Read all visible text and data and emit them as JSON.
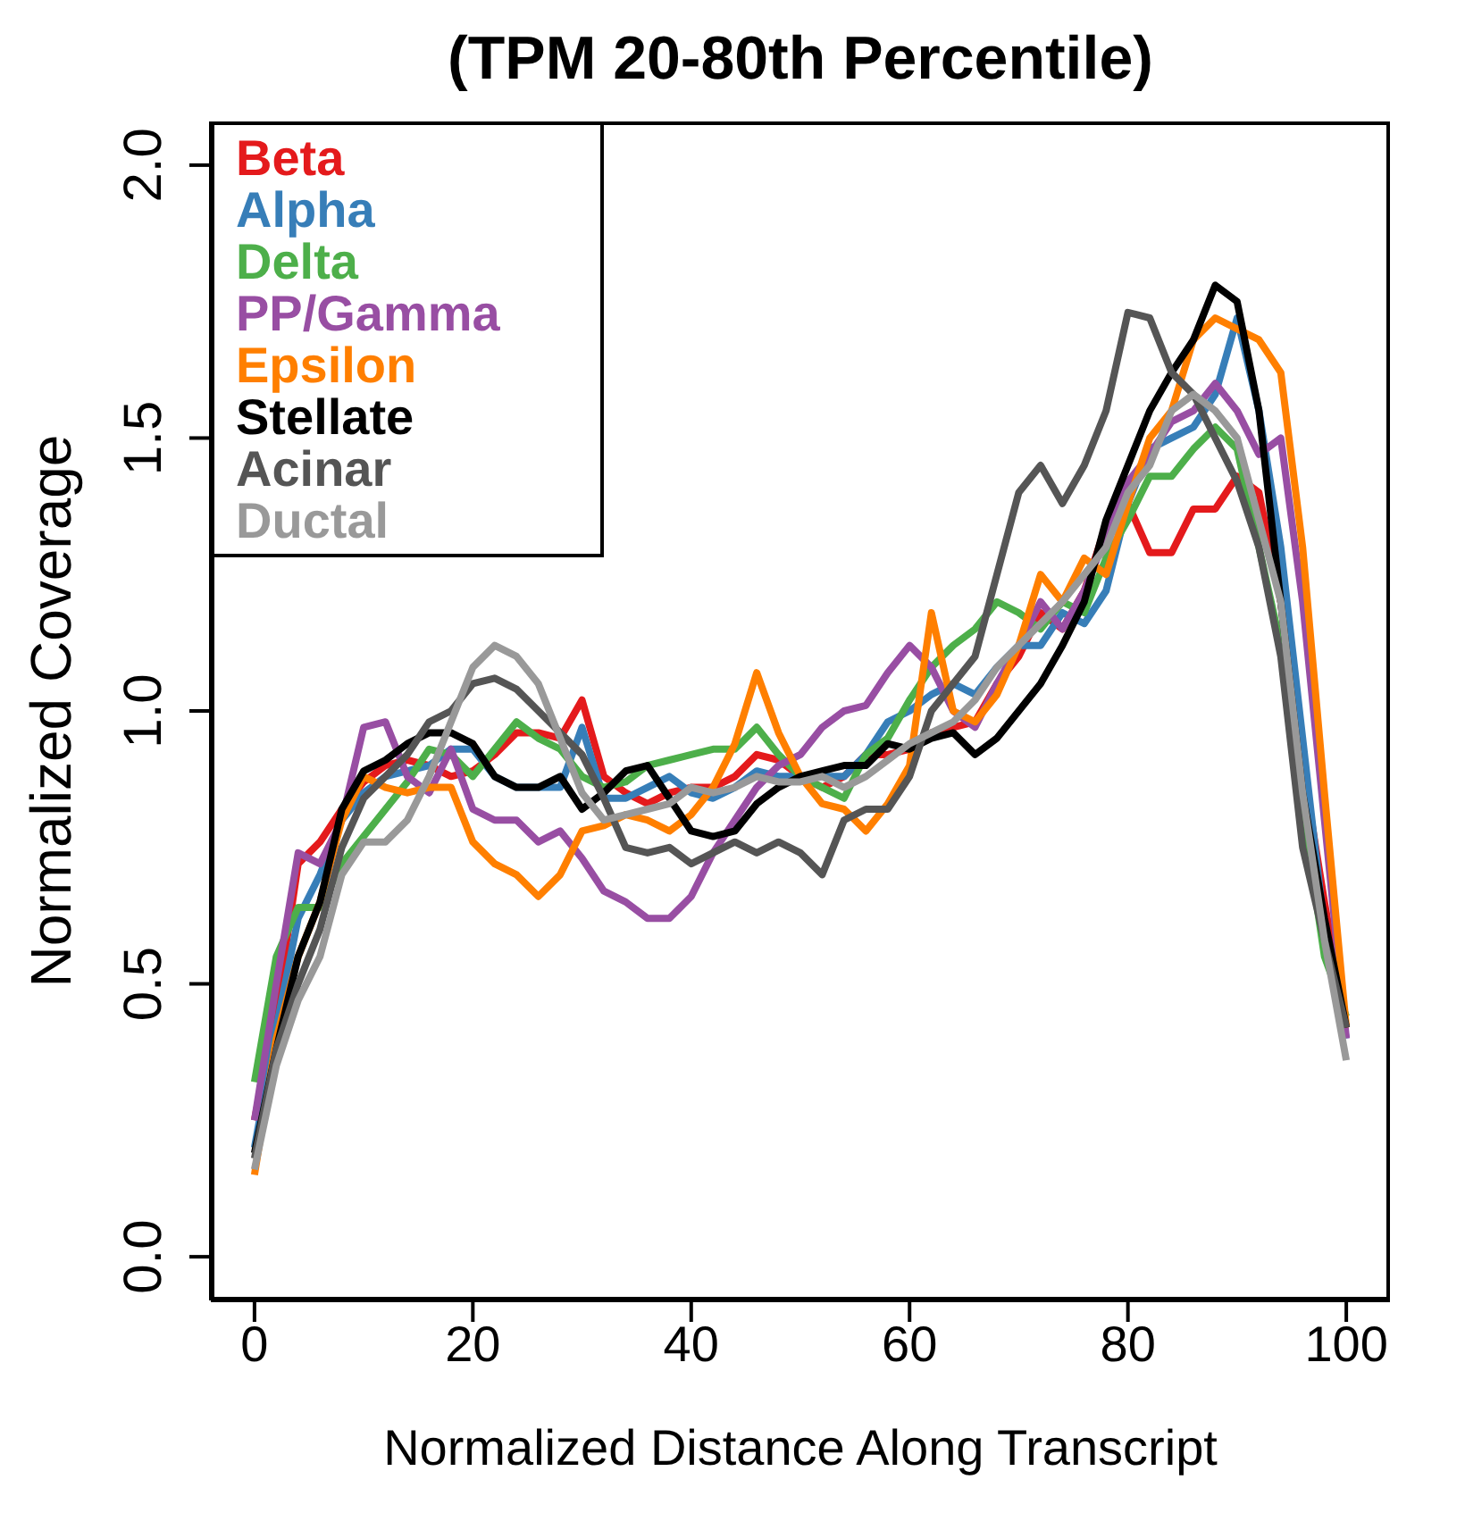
{
  "chart_data": {
    "type": "line",
    "title": "(TPM 20-80th Percentile)",
    "xlabel": "Normalized Distance Along Transcript",
    "ylabel": "Normalized Coverage",
    "x": [
      0,
      2,
      4,
      6,
      8,
      10,
      12,
      14,
      16,
      18,
      20,
      22,
      24,
      26,
      28,
      30,
      32,
      34,
      36,
      38,
      40,
      42,
      44,
      46,
      48,
      50,
      52,
      54,
      56,
      58,
      60,
      62,
      64,
      66,
      68,
      70,
      72,
      74,
      76,
      78,
      80,
      82,
      84,
      86,
      88,
      90,
      92,
      94,
      96,
      98,
      100
    ],
    "xlim": [
      -4,
      104
    ],
    "ylim": [
      -0.08,
      2.08
    ],
    "xticks": [
      0,
      20,
      40,
      60,
      80,
      100
    ],
    "yticks": [
      {
        "value": 0,
        "label": "0.0"
      },
      0.5,
      {
        "value": 1,
        "label": "1.0"
      },
      1.5,
      {
        "value": 2,
        "label": "2.0"
      }
    ],
    "grid": false,
    "legend": "top left",
    "marker": "none",
    "line_style": "solid",
    "series": [
      {
        "name": "Beta",
        "color": "#e41a1c",
        "values": [
          0.25,
          0.45,
          0.72,
          0.76,
          0.82,
          0.87,
          0.9,
          0.91,
          0.9,
          0.88,
          0.89,
          0.92,
          0.96,
          0.96,
          0.95,
          1.02,
          0.88,
          0.85,
          0.83,
          0.85,
          0.86,
          0.86,
          0.88,
          0.92,
          0.91,
          0.88,
          0.86,
          0.88,
          0.92,
          0.92,
          0.93,
          0.96,
          0.97,
          0.98,
          1.05,
          1.1,
          1.18,
          1.15,
          1.22,
          1.34,
          1.38,
          1.29,
          1.29,
          1.37,
          1.37,
          1.43,
          1.4,
          1.2,
          0.9,
          0.65,
          0.42
        ]
      },
      {
        "name": "Alpha",
        "color": "#377eb8",
        "values": [
          0.2,
          0.42,
          0.62,
          0.7,
          0.8,
          0.85,
          0.88,
          0.89,
          0.9,
          0.93,
          0.93,
          0.88,
          0.86,
          0.86,
          0.86,
          0.97,
          0.84,
          0.84,
          0.86,
          0.88,
          0.85,
          0.84,
          0.86,
          0.89,
          0.88,
          0.88,
          0.88,
          0.88,
          0.92,
          0.98,
          1.0,
          1.03,
          1.05,
          1.03,
          1.08,
          1.12,
          1.12,
          1.18,
          1.16,
          1.22,
          1.38,
          1.48,
          1.5,
          1.52,
          1.58,
          1.72,
          1.55,
          1.3,
          0.95,
          0.6,
          0.4
        ]
      },
      {
        "name": "Delta",
        "color": "#4daf4a",
        "values": [
          0.32,
          0.55,
          0.64,
          0.64,
          0.72,
          0.77,
          0.82,
          0.87,
          0.93,
          0.92,
          0.88,
          0.93,
          0.98,
          0.95,
          0.93,
          0.88,
          0.86,
          0.87,
          0.9,
          0.91,
          0.92,
          0.93,
          0.93,
          0.97,
          0.92,
          0.88,
          0.86,
          0.84,
          0.92,
          0.95,
          1.02,
          1.08,
          1.12,
          1.15,
          1.2,
          1.18,
          1.15,
          1.2,
          1.18,
          1.28,
          1.35,
          1.43,
          1.43,
          1.48,
          1.52,
          1.48,
          1.3,
          1.12,
          0.82,
          0.55,
          0.44
        ]
      },
      {
        "name": "PP/Gamma",
        "color": "#984ea3",
        "values": [
          0.25,
          0.5,
          0.74,
          0.72,
          0.8,
          0.97,
          0.98,
          0.88,
          0.85,
          0.93,
          0.82,
          0.8,
          0.8,
          0.76,
          0.78,
          0.73,
          0.67,
          0.65,
          0.62,
          0.62,
          0.66,
          0.74,
          0.8,
          0.86,
          0.9,
          0.92,
          0.97,
          1.0,
          1.01,
          1.07,
          1.12,
          1.08,
          1.0,
          0.97,
          1.05,
          1.12,
          1.2,
          1.15,
          1.22,
          1.32,
          1.42,
          1.47,
          1.53,
          1.55,
          1.6,
          1.55,
          1.47,
          1.5,
          1.2,
          0.8,
          0.4
        ]
      },
      {
        "name": "Epsilon",
        "color": "#ff7f00",
        "values": [
          0.15,
          0.4,
          0.55,
          0.65,
          0.8,
          0.88,
          0.86,
          0.85,
          0.86,
          0.86,
          0.76,
          0.72,
          0.7,
          0.66,
          0.7,
          0.78,
          0.79,
          0.81,
          0.8,
          0.78,
          0.81,
          0.86,
          0.94,
          1.07,
          0.96,
          0.88,
          0.83,
          0.82,
          0.78,
          0.83,
          0.9,
          1.18,
          1.0,
          0.98,
          1.03,
          1.12,
          1.25,
          1.2,
          1.28,
          1.25,
          1.38,
          1.5,
          1.55,
          1.68,
          1.72,
          1.7,
          1.68,
          1.62,
          1.3,
          0.85,
          0.42
        ]
      },
      {
        "name": "Stellate",
        "color": "#000000",
        "values": [
          0.19,
          0.38,
          0.55,
          0.65,
          0.82,
          0.89,
          0.91,
          0.94,
          0.96,
          0.96,
          0.94,
          0.88,
          0.86,
          0.86,
          0.88,
          0.82,
          0.85,
          0.89,
          0.9,
          0.84,
          0.78,
          0.77,
          0.78,
          0.83,
          0.86,
          0.88,
          0.89,
          0.9,
          0.9,
          0.94,
          0.93,
          0.95,
          0.96,
          0.92,
          0.95,
          1.0,
          1.05,
          1.12,
          1.2,
          1.35,
          1.45,
          1.55,
          1.62,
          1.68,
          1.78,
          1.75,
          1.55,
          1.2,
          0.85,
          0.62,
          0.42
        ]
      },
      {
        "name": "Acinar",
        "color": "#555555",
        "values": [
          0.18,
          0.38,
          0.5,
          0.6,
          0.75,
          0.84,
          0.88,
          0.92,
          0.98,
          1.0,
          1.05,
          1.06,
          1.04,
          1.0,
          0.96,
          0.92,
          0.84,
          0.75,
          0.74,
          0.75,
          0.72,
          0.74,
          0.76,
          0.74,
          0.76,
          0.74,
          0.7,
          0.8,
          0.82,
          0.82,
          0.88,
          1.0,
          1.05,
          1.1,
          1.25,
          1.4,
          1.45,
          1.38,
          1.45,
          1.55,
          1.73,
          1.72,
          1.62,
          1.58,
          1.5,
          1.42,
          1.3,
          1.1,
          0.75,
          0.58,
          0.42
        ]
      },
      {
        "name": "Ductal",
        "color": "#999999",
        "values": [
          0.16,
          0.35,
          0.47,
          0.55,
          0.7,
          0.76,
          0.76,
          0.8,
          0.88,
          0.98,
          1.08,
          1.12,
          1.1,
          1.05,
          0.95,
          0.85,
          0.8,
          0.81,
          0.82,
          0.83,
          0.86,
          0.85,
          0.86,
          0.88,
          0.87,
          0.87,
          0.88,
          0.86,
          0.88,
          0.91,
          0.94,
          0.96,
          0.98,
          1.02,
          1.08,
          1.12,
          1.16,
          1.2,
          1.25,
          1.3,
          1.4,
          1.45,
          1.55,
          1.58,
          1.55,
          1.5,
          1.35,
          1.2,
          0.85,
          0.58,
          0.36
        ]
      }
    ]
  }
}
